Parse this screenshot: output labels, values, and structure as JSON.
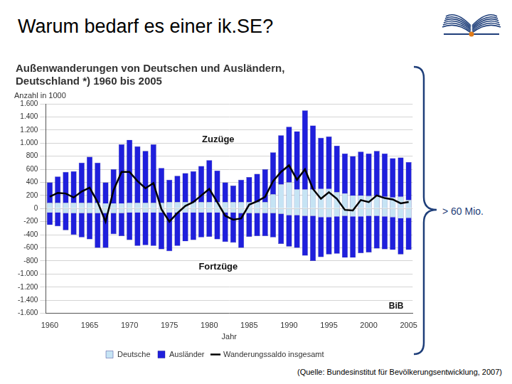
{
  "slide": {
    "title": "Warum bedarf es einer ik.SE?",
    "brace_label": "> 60 Mio.",
    "source": "(Quelle: Bundesinstitut für Bevölkerungsentwicklung, 2007)"
  },
  "chart_data": {
    "type": "bar",
    "title": [
      "Außenwanderungen von Deutschen und Ausländern,",
      "Deutschland *) 1960 bis 2005"
    ],
    "y_label": "Anzahl in 1000",
    "x_label": "Jahr",
    "annotations": [
      "Zuzüge",
      "Fortzüge",
      "BiB"
    ],
    "stacked": true,
    "grid": true,
    "legend": "bottom",
    "categories": [
      "1960",
      null,
      null,
      null,
      null,
      "1965",
      null,
      null,
      null,
      null,
      "1970",
      null,
      null,
      null,
      null,
      "1975",
      null,
      null,
      null,
      null,
      "1980",
      null,
      null,
      null,
      null,
      "1985",
      null,
      null,
      null,
      null,
      "1990",
      null,
      null,
      null,
      null,
      "1995",
      null,
      null,
      null,
      null,
      "2000",
      null,
      null,
      null,
      null,
      "2005"
    ],
    "ylim": [
      -1600,
      1600
    ],
    "yticks": [
      {
        "value": -1600,
        "label": "-1.600"
      },
      {
        "value": -1400,
        "label": "-1.400"
      },
      {
        "value": -1200,
        "label": "-1.200"
      },
      {
        "value": -1000,
        "label": "-1.000"
      },
      -800,
      -600,
      -400,
      -200,
      0,
      200,
      400,
      600,
      800,
      {
        "value": 1000,
        "label": "1.000"
      },
      {
        "value": 1200,
        "label": "1.200"
      },
      {
        "value": 1400,
        "label": "1.400"
      },
      {
        "value": 1600,
        "label": "1.600"
      }
    ],
    "series": [
      {
        "name": "Deutsche",
        "color": "#c6e4f4",
        "type": "bar",
        "values": [
          90,
          90,
          90,
          90,
          90,
          90,
          90,
          80,
          80,
          80,
          90,
          90,
          90,
          90,
          90,
          100,
          100,
          100,
          100,
          100,
          100,
          100,
          100,
          100,
          100,
          100,
          100,
          100,
          220,
          370,
          400,
          290,
          290,
          290,
          300,
          300,
          250,
          230,
          200,
          200,
          190,
          190,
          180,
          170,
          180,
          130
        ]
      },
      {
        "name": "Ausländer",
        "color": "#1f1fdc",
        "type": "bar",
        "values": [
          310,
          400,
          470,
          480,
          610,
          700,
          610,
          320,
          520,
          900,
          960,
          860,
          790,
          890,
          530,
          340,
          400,
          440,
          470,
          550,
          640,
          480,
          300,
          250,
          340,
          380,
          430,
          500,
          640,
          750,
          850,
          890,
          1210,
          980,
          780,
          800,
          710,
          610,
          600,
          670,
          650,
          690,
          660,
          600,
          600,
          580
        ]
      },
      {
        "name": "Deutsche",
        "color": "#c6e4f4",
        "type": "bar",
        "values": [
          -60,
          -60,
          -70,
          -70,
          -70,
          -70,
          -70,
          -70,
          -70,
          -70,
          -60,
          -60,
          -60,
          -60,
          -60,
          -60,
          -60,
          -60,
          -60,
          -60,
          -60,
          -60,
          -60,
          -60,
          -70,
          -70,
          -70,
          -70,
          -70,
          -80,
          -100,
          -100,
          -110,
          -110,
          -130,
          -130,
          -120,
          -110,
          -120,
          -120,
          -110,
          -110,
          -120,
          -130,
          -150,
          -140
        ]
      },
      {
        "name": "Ausländer",
        "color": "#1f1fdc",
        "type": "bar",
        "values": [
          -190,
          -210,
          -260,
          -330,
          -370,
          -400,
          -530,
          -530,
          -320,
          -350,
          -420,
          -510,
          -500,
          -510,
          -560,
          -590,
          -510,
          -440,
          -420,
          -380,
          -370,
          -410,
          -450,
          -460,
          -530,
          -360,
          -350,
          -350,
          -370,
          -460,
          -480,
          -500,
          -610,
          -690,
          -610,
          -570,
          -570,
          -640,
          -630,
          -560,
          -560,
          -500,
          -500,
          -500,
          -550,
          -490
        ]
      },
      {
        "name": "Wanderungssaldo insgesamt",
        "color": "#000000",
        "type": "line",
        "marker": "none",
        "line_style": "solid",
        "values": [
          180,
          240,
          230,
          170,
          260,
          320,
          100,
          -200,
          280,
          560,
          560,
          420,
          310,
          390,
          -10,
          -200,
          -70,
          40,
          100,
          200,
          300,
          100,
          -110,
          -170,
          -150,
          60,
          110,
          180,
          420,
          560,
          660,
          440,
          600,
          300,
          150,
          250,
          150,
          -20,
          -30,
          130,
          100,
          200,
          160,
          140,
          80,
          100
        ]
      }
    ]
  }
}
